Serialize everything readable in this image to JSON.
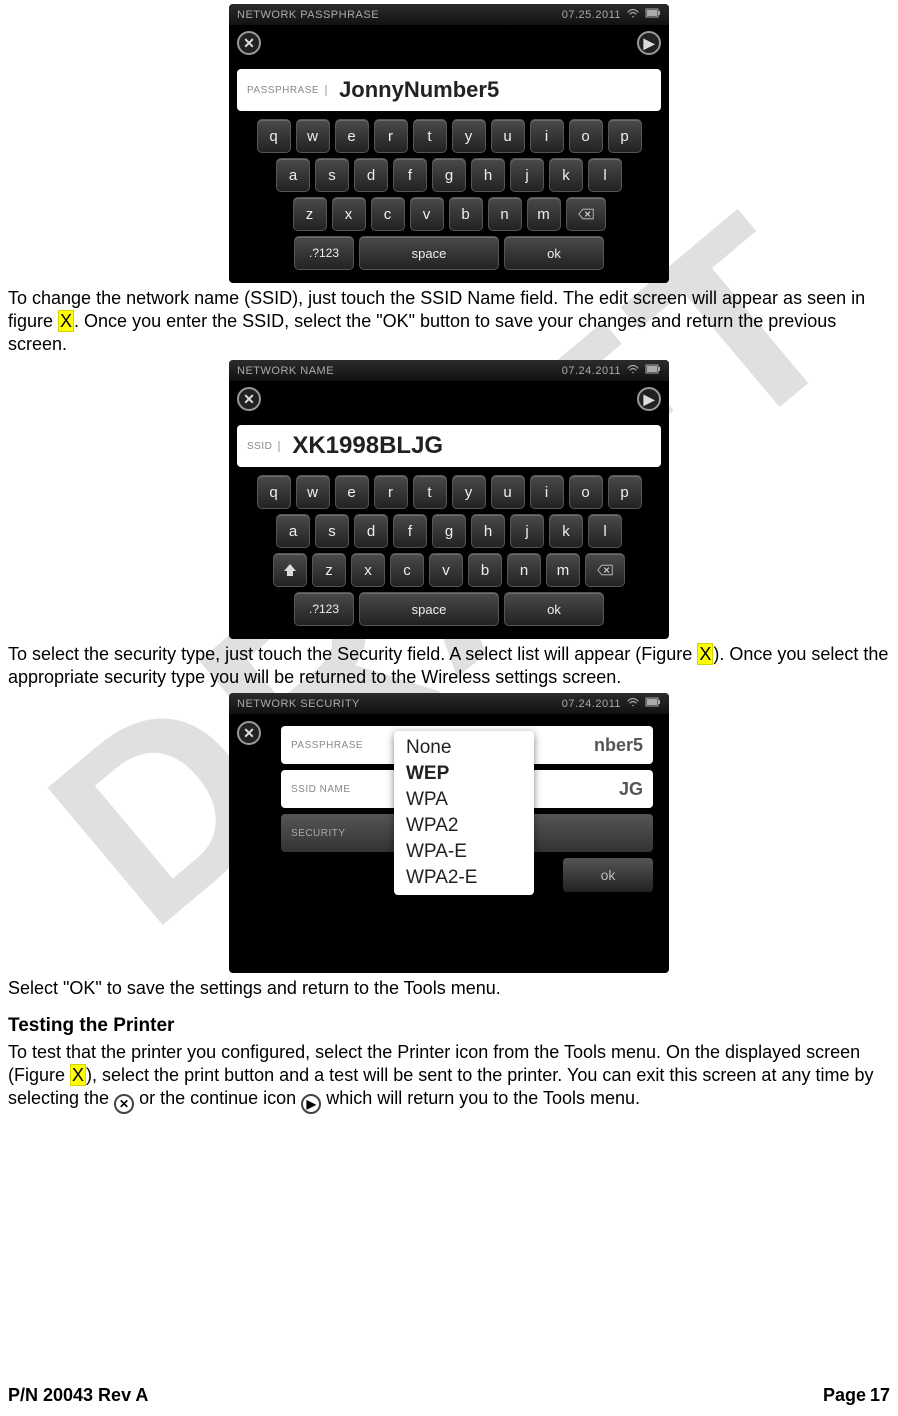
{
  "watermark": "DRAFT",
  "shot1": {
    "title": "NETWORK PASSPHRASE",
    "date": "07.25.2011",
    "field_label": "PASSPHRASE",
    "field_value": "JonnyNumber5",
    "keyboard": {
      "row1": [
        "q",
        "w",
        "e",
        "r",
        "t",
        "y",
        "u",
        "i",
        "o",
        "p"
      ],
      "row2": [
        "a",
        "s",
        "d",
        "f",
        "g",
        "h",
        "j",
        "k",
        "l"
      ],
      "row3": [
        "z",
        "x",
        "c",
        "v",
        "b",
        "n",
        "m"
      ],
      "row4_sym": ".?123",
      "row4_space": "space",
      "row4_ok": "ok"
    }
  },
  "para1_pre": "To change the network name (SSID), just touch the SSID Name field.  The edit screen will appear as seen in figure ",
  "para1_hl": "X",
  "para1_post": ".  Once you enter the SSID, select the \"OK\" button to save your changes and return the previous screen.",
  "shot2": {
    "title": "NETWORK NAME",
    "date": "07.24.2011",
    "field_label": "SSID",
    "field_value": "XK1998BLJG"
  },
  "para2_pre": "To select the security type, just touch the Security field.  A select list will appear (Figure ",
  "para2_hl": "X",
  "para2_post": ").  Once you select the appropriate security type you will be returned to the Wireless settings screen.",
  "shot3": {
    "title": "NETWORK SECURITY",
    "date": "07.24.2011",
    "passphrase_label": "PASSPHRASE",
    "passphrase_value_partial": "nber5",
    "ssid_label": "SSID NAME",
    "ssid_value_partial": "JG",
    "security_label": "SECURITY",
    "options": [
      "None",
      "WEP",
      "WPA",
      "WPA2",
      "WPA-E",
      "WPA2-E"
    ],
    "selected_index": 1,
    "ok": "ok"
  },
  "para3": "Select \"OK\" to save the settings and return to the Tools menu.",
  "heading": "Testing the Printer",
  "para4_a": "To test that the printer you configured, select the Printer icon from the Tools menu.  On the displayed screen (Figure ",
  "para4_hl": "X",
  "para4_b": "), select the print button and a test will be sent to the printer.  You can exit this screen at any time by selecting the ",
  "para4_c": " or the continue icon ",
  "para4_d": " which will return you to the Tools menu.",
  "footer": {
    "pn": "P/N 20043 Rev A",
    "page_label": "Page ",
    "page_num": "17"
  },
  "colors": {
    "highlight": "#ffff00",
    "key_bg_top": "#4a4a4a",
    "key_bg_bot": "#222222"
  }
}
